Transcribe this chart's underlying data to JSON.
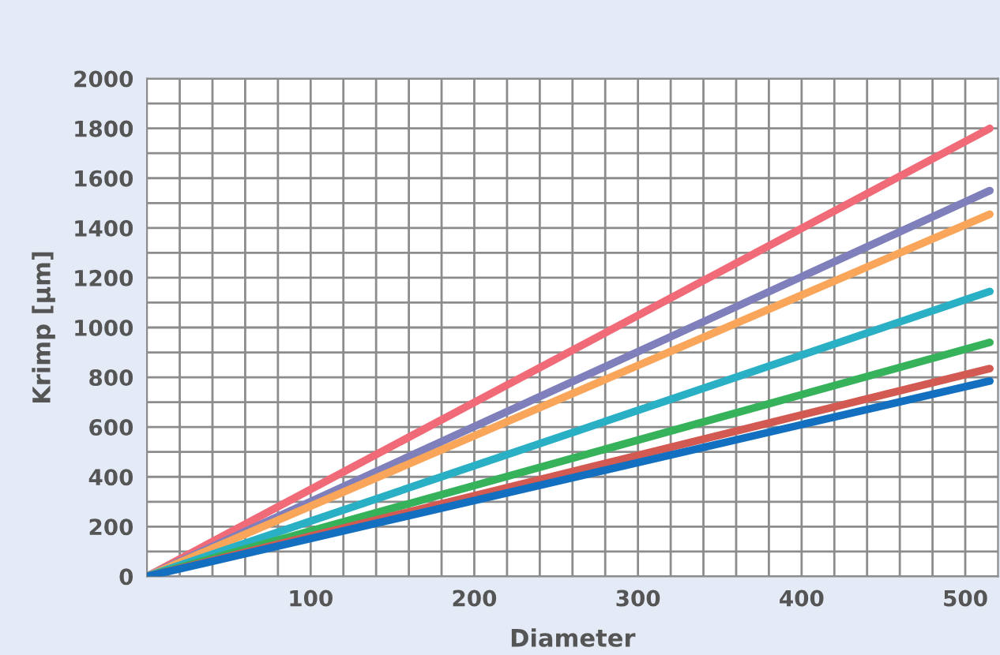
{
  "chart_data": {
    "type": "line",
    "xlabel": "Diameter",
    "ylabel": "Krimp [µm]",
    "xlim": [
      0,
      520
    ],
    "ylim": [
      0,
      2000
    ],
    "xticks": [
      {
        "value": 20,
        "label": null
      },
      {
        "value": 40,
        "label": null
      },
      {
        "value": 60,
        "label": null
      },
      {
        "value": 80,
        "label": null
      },
      {
        "value": 100,
        "label": "100"
      },
      {
        "value": 120,
        "label": null
      },
      {
        "value": 140,
        "label": null
      },
      {
        "value": 160,
        "label": null
      },
      {
        "value": 180,
        "label": null
      },
      {
        "value": 200,
        "label": "200"
      },
      {
        "value": 220,
        "label": null
      },
      {
        "value": 240,
        "label": null
      },
      {
        "value": 260,
        "label": null
      },
      {
        "value": 280,
        "label": null
      },
      {
        "value": 300,
        "label": "300"
      },
      {
        "value": 320,
        "label": null
      },
      {
        "value": 340,
        "label": null
      },
      {
        "value": 360,
        "label": null
      },
      {
        "value": 380,
        "label": null
      },
      {
        "value": 400,
        "label": "400"
      },
      {
        "value": 420,
        "label": null
      },
      {
        "value": 440,
        "label": null
      },
      {
        "value": 460,
        "label": null
      },
      {
        "value": 480,
        "label": null
      },
      {
        "value": 500,
        "label": "500"
      }
    ],
    "yticks": [
      0,
      {
        "value": 100,
        "label": null
      },
      200,
      {
        "value": 300,
        "label": null
      },
      400,
      {
        "value": 500,
        "label": null
      },
      600,
      {
        "value": 700,
        "label": null
      },
      800,
      {
        "value": 900,
        "label": null
      },
      1000,
      {
        "value": 1100,
        "label": null
      },
      1200,
      {
        "value": 1300,
        "label": null
      },
      1400,
      {
        "value": 1500,
        "label": null
      },
      1600,
      {
        "value": 1700,
        "label": null
      },
      1800,
      {
        "value": 1900,
        "label": null
      },
      2000
    ],
    "grid": true,
    "legend": false,
    "line_style": "solid",
    "marker": "none",
    "x": [
      0,
      515
    ],
    "series": [
      {
        "color": "#f06a78",
        "values": [
          0,
          1800
        ]
      },
      {
        "color": "#7f7fbb",
        "values": [
          0,
          1550
        ]
      },
      {
        "color": "#f9a55a",
        "values": [
          0,
          1455
        ]
      },
      {
        "color": "#2ab0c5",
        "values": [
          0,
          1145
        ]
      },
      {
        "color": "#36b25a",
        "values": [
          0,
          940
        ]
      },
      {
        "color": "#d35a52",
        "values": [
          0,
          835
        ]
      },
      {
        "color": "#1370c0",
        "values": [
          0,
          785
        ]
      }
    ]
  }
}
